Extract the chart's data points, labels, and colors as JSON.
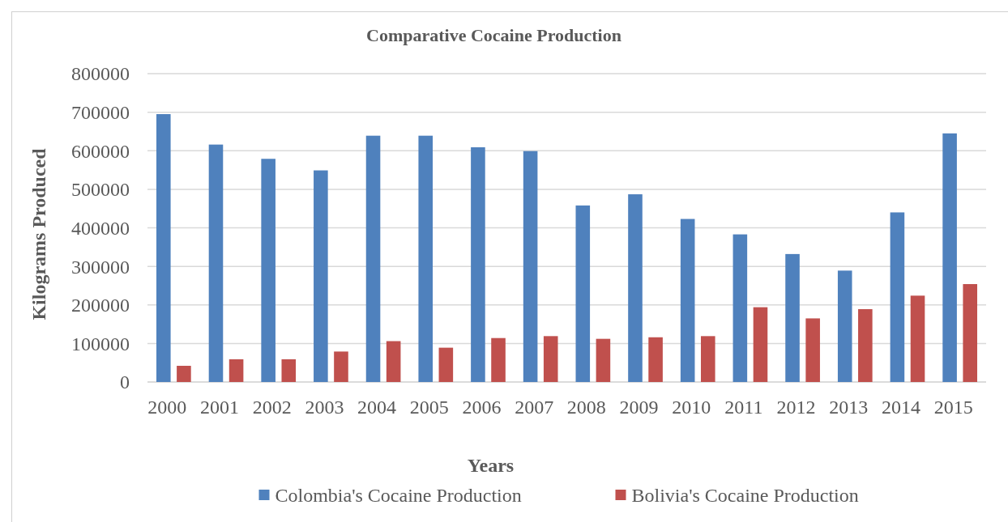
{
  "chart_data": {
    "type": "bar",
    "title": "Comparative Cocaine Production",
    "xlabel": "Years",
    "ylabel": "Kilograms Produced",
    "categories": [
      "2000",
      "2001",
      "2002",
      "2003",
      "2004",
      "2005",
      "2006",
      "2007",
      "2008",
      "2009",
      "2010",
      "2011",
      "2012",
      "2013",
      "2014",
      "2015"
    ],
    "series": [
      {
        "name": "Colombia's Cocaine Production",
        "color": "#4f81bd",
        "values": [
          695000,
          616000,
          579000,
          549000,
          639000,
          639000,
          609000,
          599000,
          458000,
          487000,
          423000,
          383000,
          332000,
          289000,
          440000,
          645000
        ]
      },
      {
        "name": "Bolivia's Cocaine Production",
        "color": "#c0504d",
        "values": [
          42000,
          59000,
          59000,
          79000,
          106000,
          89000,
          114000,
          119000,
          112000,
          116000,
          119000,
          194000,
          165000,
          189000,
          224000,
          254000
        ]
      }
    ],
    "ylim": [
      0,
      800000
    ],
    "yticks": [
      0,
      100000,
      200000,
      300000,
      400000,
      500000,
      600000,
      700000,
      800000
    ],
    "grid": "y",
    "legend": "bottom"
  }
}
